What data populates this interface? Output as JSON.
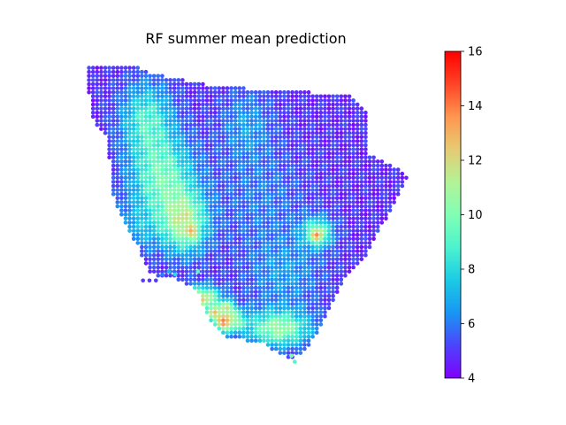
{
  "chart_data": {
    "type": "scatter",
    "title": "RF summer mean prediction",
    "axes_visible": false,
    "colormap": "rainbow",
    "colormap_stops": [
      "#8000ff",
      "#4c44fc",
      "#1996f3",
      "#1acbe5",
      "#4df3ce",
      "#80ffb4",
      "#b3f396",
      "#e6cb73",
      "#ff964f",
      "#ff4426",
      "#ff0000"
    ],
    "colorbar": {
      "min": 4,
      "max": 16,
      "ticks": [
        {
          "value": 4,
          "label": "4"
        },
        {
          "value": 6,
          "label": "6"
        },
        {
          "value": 8,
          "label": "8"
        },
        {
          "value": 10,
          "label": "10"
        },
        {
          "value": 12,
          "label": "12"
        },
        {
          "value": 14,
          "label": "14"
        },
        {
          "value": 16,
          "label": "16"
        }
      ]
    },
    "boundary": [
      [
        0.0,
        0.0
      ],
      [
        0.16,
        0.01
      ],
      [
        0.2,
        0.03
      ],
      [
        0.38,
        0.07
      ],
      [
        0.6,
        0.09
      ],
      [
        0.82,
        0.1
      ],
      [
        0.87,
        0.16
      ],
      [
        0.88,
        0.3
      ],
      [
        0.99,
        0.36
      ],
      [
        1.0,
        0.38
      ],
      [
        0.93,
        0.52
      ],
      [
        0.87,
        0.64
      ],
      [
        0.8,
        0.72
      ],
      [
        0.74,
        0.86
      ],
      [
        0.68,
        0.96
      ],
      [
        0.63,
        0.98
      ],
      [
        0.55,
        0.93
      ],
      [
        0.44,
        0.91
      ],
      [
        0.39,
        0.86
      ],
      [
        0.35,
        0.76
      ],
      [
        0.3,
        0.72
      ],
      [
        0.2,
        0.7
      ],
      [
        0.17,
        0.62
      ],
      [
        0.14,
        0.56
      ],
      [
        0.09,
        0.46
      ],
      [
        0.08,
        0.36
      ],
      [
        0.07,
        0.25
      ],
      [
        0.02,
        0.18
      ],
      [
        0.01,
        0.08
      ]
    ],
    "zones": [
      {
        "center": [
          0.19,
          0.18
        ],
        "radius": [
          0.08,
          0.12
        ],
        "value": 8.5
      },
      {
        "center": [
          0.24,
          0.38
        ],
        "radius": [
          0.1,
          0.14
        ],
        "value": 9.5
      },
      {
        "center": [
          0.31,
          0.53
        ],
        "radius": [
          0.07,
          0.1
        ],
        "value": 10.5
      },
      {
        "center": [
          0.36,
          0.78
        ],
        "radius": [
          0.06,
          0.04
        ],
        "value": 12.0
      },
      {
        "center": [
          0.44,
          0.85
        ],
        "radius": [
          0.05,
          0.04
        ],
        "value": 11.5
      },
      {
        "center": [
          0.6,
          0.88
        ],
        "radius": [
          0.1,
          0.06
        ],
        "value": 10.5
      },
      {
        "center": [
          0.72,
          0.56
        ],
        "radius": [
          0.05,
          0.05
        ],
        "value": 9.5
      },
      {
        "center": [
          0.55,
          0.45
        ],
        "radius": [
          0.14,
          0.18
        ],
        "value": 6.0
      },
      {
        "center": [
          0.62,
          0.7
        ],
        "radius": [
          0.12,
          0.12
        ],
        "value": 6.5
      },
      {
        "center": [
          0.16,
          0.55
        ],
        "radius": [
          0.08,
          0.08
        ],
        "value": 6.5
      },
      {
        "center": [
          0.5,
          0.2
        ],
        "radius": [
          0.08,
          0.12
        ],
        "value": 6.5
      }
    ],
    "background_value": 4.8,
    "hotspots": [
      {
        "center": [
          0.72,
          0.57
        ],
        "value": 13.5
      },
      {
        "center": [
          0.33,
          0.56
        ],
        "value": 13.0
      },
      {
        "center": [
          0.4,
          0.83
        ],
        "value": 13.0
      },
      {
        "center": [
          0.43,
          0.86
        ],
        "value": 13.5
      },
      {
        "center": [
          0.44,
          0.81
        ],
        "value": 12.5
      }
    ],
    "outliers": [
      {
        "x": 0.18,
        "y": 0.72,
        "value": 5.0
      },
      {
        "x": 0.2,
        "y": 0.72,
        "value": 5.0
      },
      {
        "x": 0.22,
        "y": 0.72,
        "value": 5.0
      },
      {
        "x": 0.24,
        "y": 0.7,
        "value": 6.0
      },
      {
        "x": 0.26,
        "y": 0.69,
        "value": 7.0
      },
      {
        "x": 0.28,
        "y": 0.7,
        "value": 8.0
      },
      {
        "x": 0.35,
        "y": 0.69,
        "value": 9.0
      },
      {
        "x": 0.65,
        "y": 0.99,
        "value": 9.0
      },
      {
        "x": 0.64,
        "y": 0.97,
        "value": 10.0
      }
    ]
  }
}
